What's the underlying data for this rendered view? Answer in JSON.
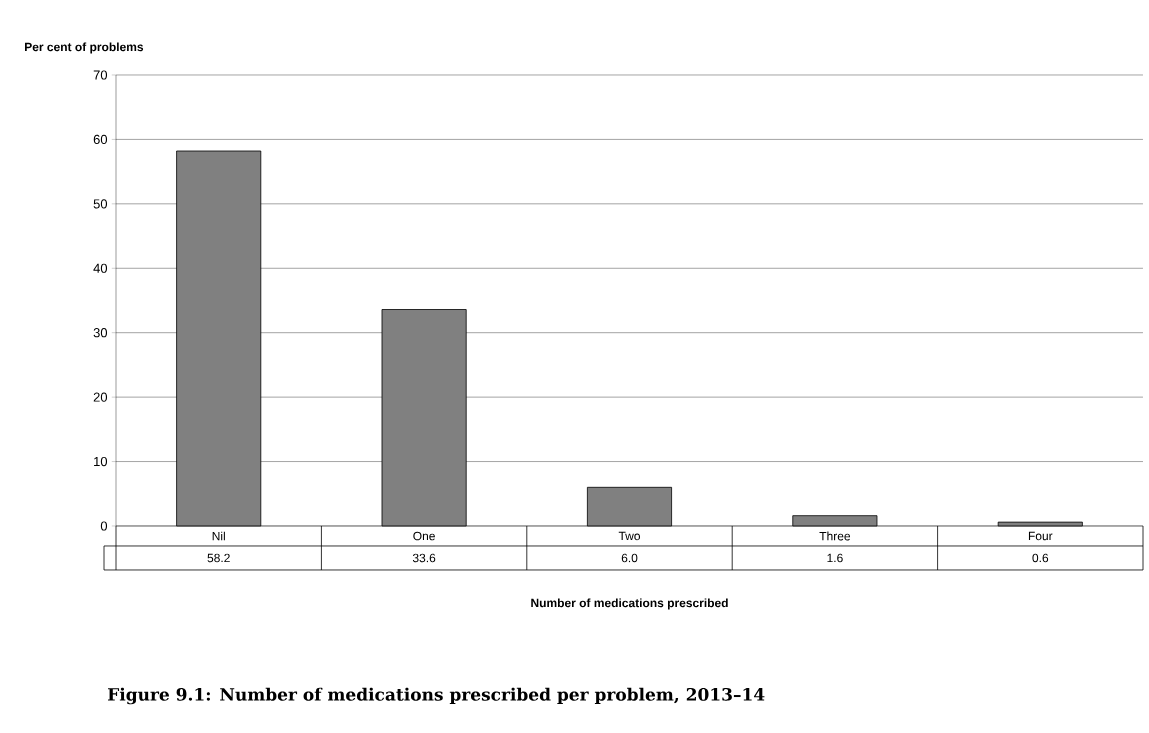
{
  "chart_data": {
    "type": "bar",
    "ylabel": "Per cent of problems",
    "xlabel": "Number of medications prescribed",
    "categories": [
      "Nil",
      "One",
      "Two",
      "Three",
      "Four"
    ],
    "values": [
      58.2,
      33.6,
      6.0,
      1.6,
      0.6
    ],
    "value_labels": [
      "58.2",
      "33.6",
      "6.0",
      "1.6",
      "0.6"
    ],
    "color": "#808080",
    "ylim": [
      0,
      70
    ],
    "yticks": [
      0,
      10,
      20,
      30,
      40,
      50,
      60,
      70
    ],
    "grid": "y",
    "annotations": [
      "Figure 9.1: Number of medications prescribed per problem, 2013–14"
    ]
  }
}
